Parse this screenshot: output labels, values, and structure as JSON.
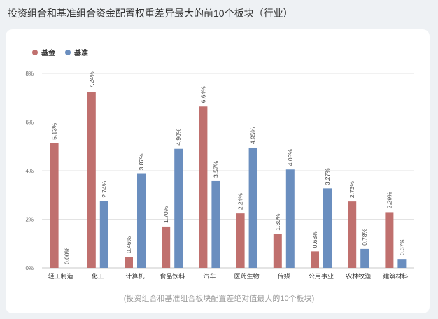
{
  "page": {
    "title": "投资组合和基准组合资金配置权重差异最大的前10个板块（行业）",
    "caption": "(投资组合和基准组合板块配置差绝对值最大的10个板块)"
  },
  "colors": {
    "fund": "#c0706e",
    "benchmark": "#6a8ebf"
  },
  "chart_data": {
    "type": "bar",
    "categories": [
      "轻工制造",
      "化工",
      "计算机",
      "食品饮料",
      "汽车",
      "医药生物",
      "传媒",
      "公用事业",
      "农林牧渔",
      "建筑材料"
    ],
    "series": [
      {
        "name": "基金",
        "values": [
          5.13,
          7.24,
          0.46,
          1.7,
          6.64,
          2.24,
          1.39,
          0.68,
          2.73,
          2.29
        ],
        "labels": [
          "5.13%",
          "7.24%",
          "0.46%",
          "1.70%",
          "6.64%",
          "2.24%",
          "1.39%",
          "0.68%",
          "2.73%",
          "2.29%"
        ]
      },
      {
        "name": "基准",
        "values": [
          0.0,
          2.74,
          3.87,
          4.9,
          3.57,
          4.95,
          4.05,
          3.27,
          0.78,
          0.37
        ],
        "labels": [
          "0.00%",
          "2.74%",
          "3.87%",
          "4.90%",
          "3.57%",
          "4.95%",
          "4.05%",
          "3.27%",
          "0.78%",
          "0.37%"
        ]
      }
    ],
    "y_ticks": [
      "0%",
      "2%",
      "4%",
      "6%",
      "8%"
    ],
    "ylim": [
      0,
      8
    ],
    "grid": true,
    "legend_position": "top-left"
  }
}
